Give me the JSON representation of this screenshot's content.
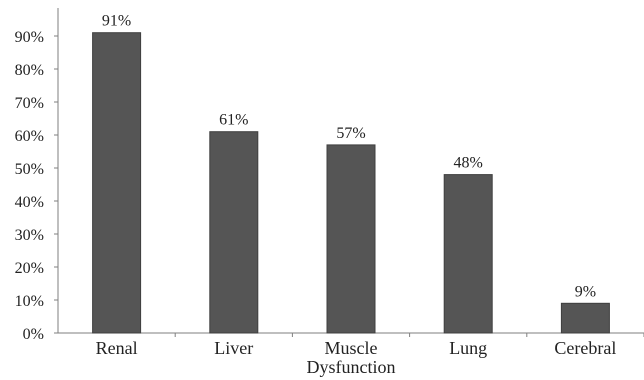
{
  "chart_data": {
    "type": "bar",
    "title": "",
    "xlabel": "",
    "ylabel": "",
    "categories": [
      [
        "Renal"
      ],
      [
        "Liver"
      ],
      [
        "Muscle",
        "Dysfunction"
      ],
      [
        "Lung"
      ],
      [
        "Cerebral"
      ]
    ],
    "values": [
      91,
      61,
      57,
      48,
      9
    ],
    "data_labels": [
      "91%",
      "61%",
      "57%",
      "48%",
      "9%"
    ],
    "y_ticks": [
      "0%",
      "10%",
      "20%",
      "30%",
      "40%",
      "50%",
      "60%",
      "70%",
      "80%",
      "90%"
    ],
    "ylim": [
      0,
      100
    ],
    "grid": false,
    "legend": "none",
    "colors": {
      "bar": "#555555",
      "bar_edge": "#3f3f3f",
      "axis": "#7f7f7f"
    }
  }
}
